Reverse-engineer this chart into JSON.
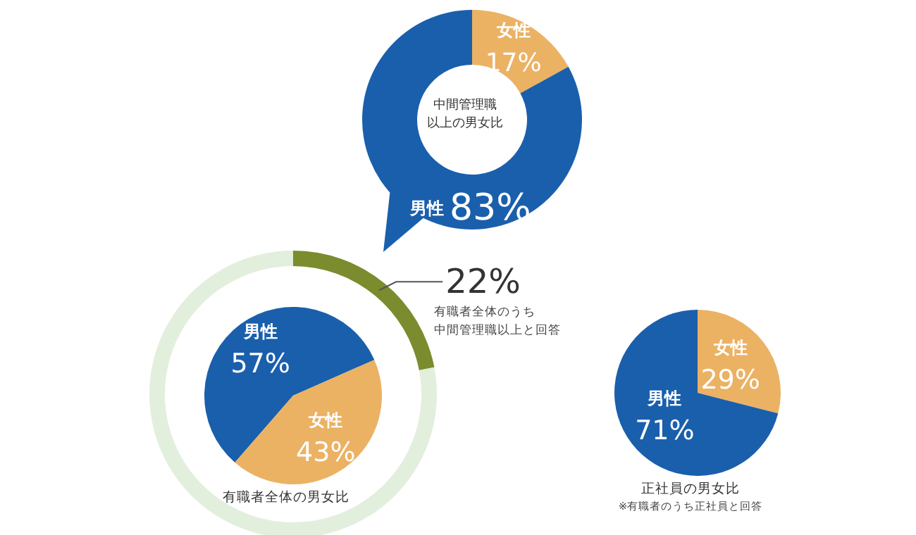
{
  "chart_data": [
    {
      "type": "donut",
      "title": "中間管理職以上の男女比",
      "categories": [
        "女性",
        "男性"
      ],
      "values": [
        17,
        83
      ],
      "value_labels": [
        "17%",
        "83%"
      ],
      "colors": [
        "#ebb264",
        "#1a5fac"
      ]
    },
    {
      "type": "donut",
      "categories": [
        "有職者全体のうち中間管理職以上と回答",
        null
      ],
      "values": [
        22,
        78
      ],
      "value_labels": [
        "22%",
        null
      ],
      "colors": [
        "#7a8c2e",
        "#e2efdc"
      ]
    },
    {
      "type": "pie",
      "title": "有職者全体の男女比",
      "categories": [
        "男性",
        "女性"
      ],
      "values": [
        57,
        43
      ],
      "value_labels": [
        "57%",
        "43%"
      ],
      "colors": [
        "#1a5fac",
        "#ebb264"
      ]
    },
    {
      "type": "pie",
      "title": "正社員の男女比",
      "categories": [
        "女性",
        "男性"
      ],
      "values": [
        29,
        71
      ],
      "value_labels": [
        "29%",
        "71%"
      ],
      "colors": [
        "#ebb264",
        "#1a5fac"
      ],
      "annotations": [
        "※有職者のうち正社員と回答"
      ]
    }
  ]
}
